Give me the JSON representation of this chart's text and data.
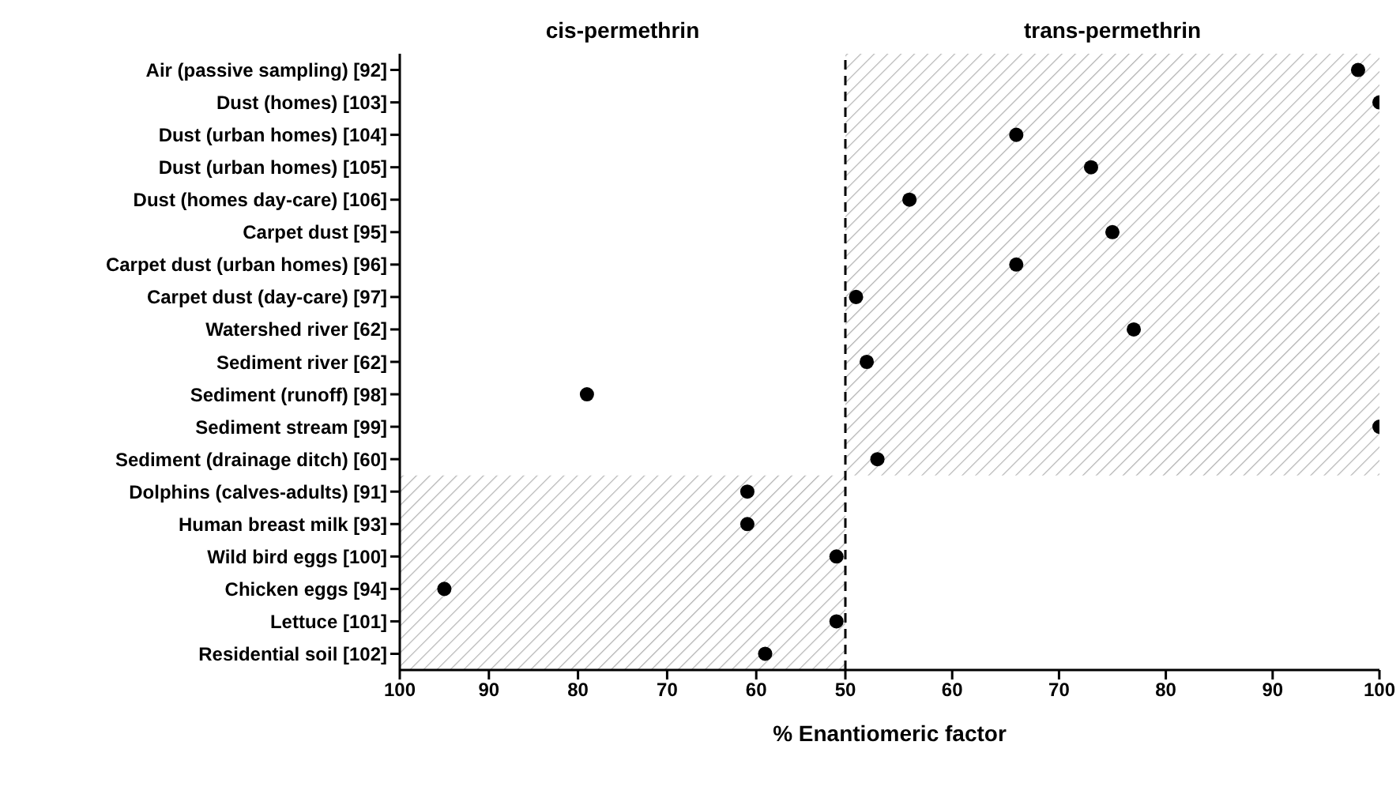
{
  "chart_data": [
    {
      "type": "scatter",
      "orientation": "horizontal",
      "title": "cis-permethrin",
      "categories": [
        "Air (passive sampling) [92]",
        "Dust (homes) [103]",
        "Dust (urban homes) [104]",
        "Dust (urban homes) [105]",
        "Dust (homes day-care) [106]",
        "Carpet dust [95]",
        "Carpet dust (urban homes) [96]",
        "Carpet dust (day-care) [97]",
        "Watershed river [62]",
        "Sediment river [62]",
        "Sediment (runoff) [98]",
        "Sediment stream [99]",
        "Sediment (drainage ditch) [60]",
        "Dolphins (calves-adults) [91]",
        "Human breast milk [93]",
        "Wild bird eggs [100]",
        "Chicken eggs [94]",
        "Lettuce [101]",
        "Residential soil [102]"
      ],
      "series": [
        {
          "color": "#000000",
          "values": [
            null,
            null,
            null,
            null,
            null,
            null,
            null,
            null,
            null,
            null,
            79,
            null,
            null,
            61,
            61,
            51,
            95,
            51,
            59
          ]
        }
      ],
      "marker": "circle",
      "xlim": [
        100,
        50
      ],
      "xticks": [
        100,
        90,
        80,
        70,
        60
      ],
      "bands": [
        {
          "axis": "y",
          "from": "Dolphins (calves-adults) [91]",
          "to": "Residential soil [102]",
          "color": "#b0b0b0"
        }
      ],
      "grid": false,
      "legend": false
    },
    {
      "type": "scatter",
      "orientation": "horizontal",
      "title": "trans-permethrin",
      "xlabel": "% Enantiomeric factor",
      "tick_labels": "x",
      "categories": [
        "Air (passive sampling) [92]",
        "Dust (homes) [103]",
        "Dust (urban homes) [104]",
        "Dust (urban homes) [105]",
        "Dust (homes day-care) [106]",
        "Carpet dust [95]",
        "Carpet dust (urban homes) [96]",
        "Carpet dust (day-care) [97]",
        "Watershed river [62]",
        "Sediment river [62]",
        "Sediment (runoff) [98]",
        "Sediment stream [99]",
        "Sediment (drainage ditch) [60]",
        "Dolphins (calves-adults) [91]",
        "Human breast milk [93]",
        "Wild bird eggs [100]",
        "Chicken eggs [94]",
        "Lettuce [101]",
        "Residential soil [102]"
      ],
      "series": [
        {
          "color": "#000000",
          "values": [
            98,
            100,
            66,
            73,
            56,
            75,
            66,
            51,
            77,
            52,
            null,
            100,
            53,
            null,
            null,
            null,
            null,
            null,
            null
          ]
        }
      ],
      "marker": "circle",
      "xlim": [
        50,
        100
      ],
      "xticks": [
        50,
        60,
        70,
        80,
        90,
        100
      ],
      "ref_lines": [
        {
          "axis": "x",
          "value": 50,
          "line_style": "dashed",
          "color": "#000000"
        }
      ],
      "bands": [
        {
          "axis": "y",
          "from": "Air (passive sampling) [92]",
          "to": "Sediment (drainage ditch) [60]",
          "color": "#b0b0b0"
        }
      ],
      "grid": false,
      "legend": false
    }
  ]
}
